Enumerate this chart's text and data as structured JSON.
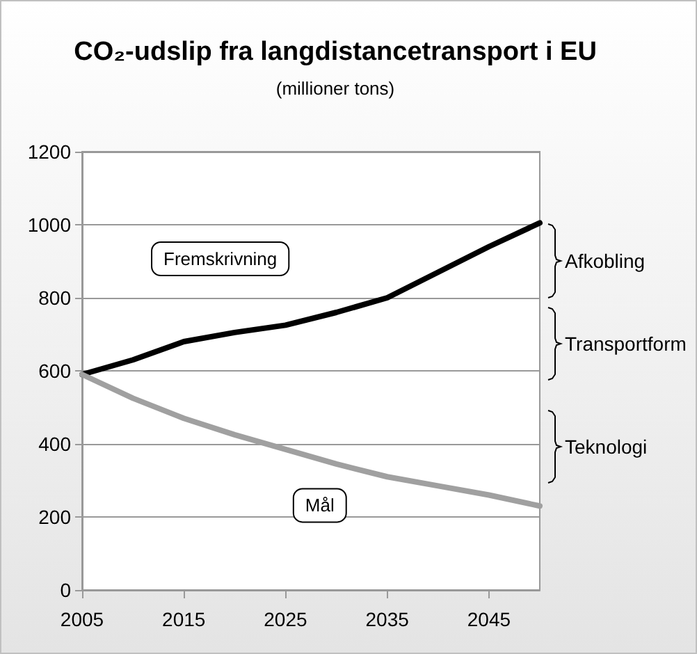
{
  "chart_data": {
    "type": "line",
    "title": "CO₂-udslip fra langdistancetransport i EU",
    "subtitle": "(millioner tons)",
    "x": [
      2005,
      2010,
      2015,
      2020,
      2025,
      2030,
      2035,
      2040,
      2045,
      2050
    ],
    "series": [
      {
        "name": "Fremskrivning",
        "color": "#000000",
        "values": [
          590,
          630,
          680,
          705,
          725,
          760,
          800,
          870,
          940,
          1005
        ]
      },
      {
        "name": "Mål",
        "color": "#a0a0a0",
        "values": [
          590,
          525,
          470,
          425,
          385,
          345,
          310,
          285,
          260,
          230
        ]
      }
    ],
    "xlim": [
      2005,
      2050
    ],
    "xticks": [
      2005,
      2015,
      2025,
      2035,
      2045
    ],
    "ylim": [
      0,
      1200
    ],
    "yticks": [
      0,
      200,
      400,
      600,
      800,
      1000,
      1200
    ],
    "annotations": [
      "Afkobling",
      "Transportform",
      "Teknologi"
    ],
    "grid": "y",
    "legend": false,
    "marker": "none",
    "line_style": "solid"
  }
}
